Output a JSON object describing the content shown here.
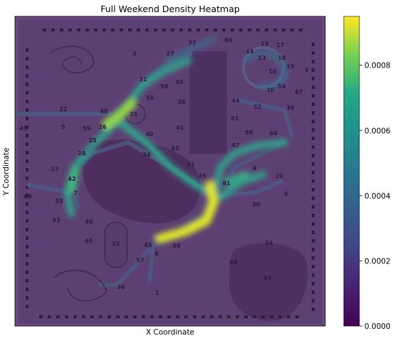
{
  "chart_data": {
    "type": "heatmap",
    "title": "Full Weekend Density Heatmap",
    "xlabel": "X Coordinate",
    "ylabel": "Y Coordinate",
    "x_ticks_shown": false,
    "y_ticks_shown": false,
    "background": "park map overlay",
    "colormap": "viridis",
    "colorbar": {
      "range": [
        0.0,
        0.00095
      ],
      "ticks": [
        "0.0000",
        "0.0002",
        "0.0004",
        "0.0006",
        "0.0008"
      ],
      "tick_values": [
        0.0,
        0.0002,
        0.0004,
        0.0006,
        0.0008
      ]
    },
    "map_labels": [
      "1",
      "3",
      "4",
      "5",
      "6",
      "7",
      "8",
      "9",
      "10",
      "13",
      "14",
      "15",
      "16",
      "17",
      "18",
      "19",
      "21",
      "22",
      "23",
      "24",
      "25",
      "26",
      "27",
      "28",
      "29",
      "30",
      "31",
      "32",
      "33",
      "34",
      "35",
      "36",
      "37",
      "38",
      "39",
      "40",
      "41",
      "42",
      "43",
      "44",
      "45",
      "46",
      "47",
      "48",
      "49",
      "50",
      "51",
      "52",
      "53",
      "54",
      "55",
      "56",
      "57",
      "58",
      "59",
      "60",
      "61",
      "62",
      "63",
      "64",
      "65",
      "66",
      "67",
      "69",
      "81"
    ]
  }
}
